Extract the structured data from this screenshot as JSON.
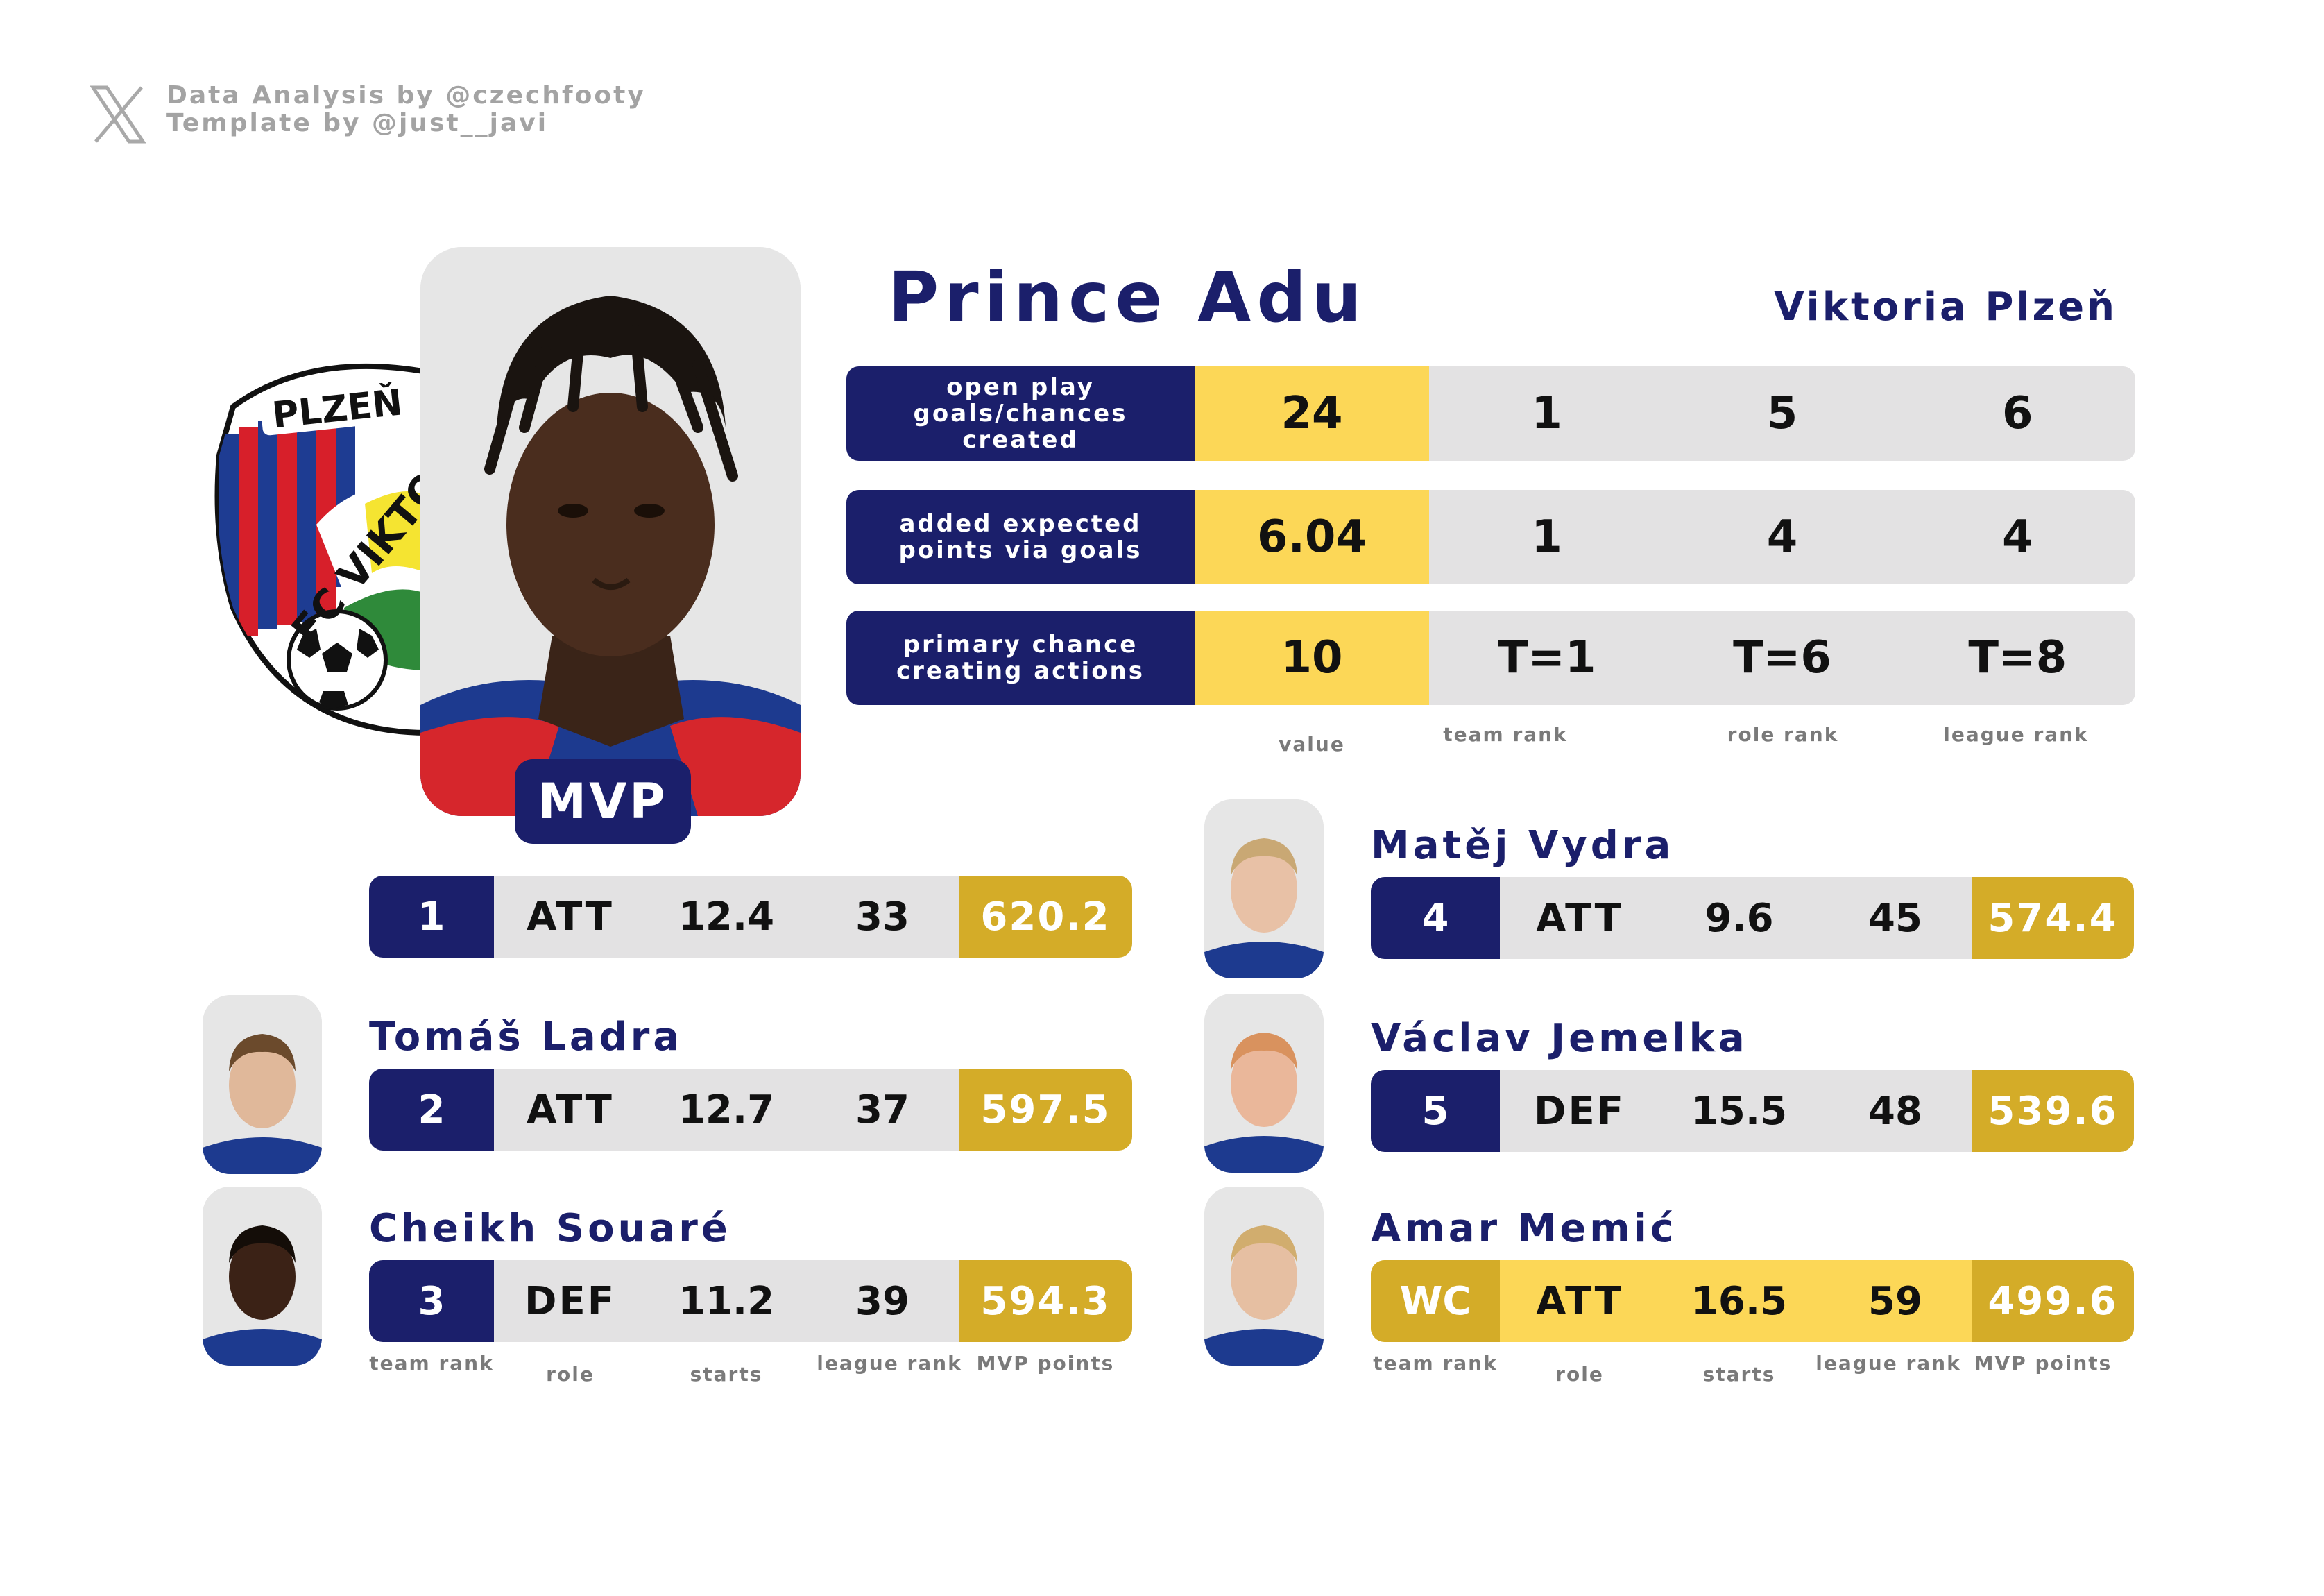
{
  "credits": {
    "line1": "Data Analysis by @czechfooty",
    "line2": "Template by @just__javi",
    "icon": "x-logo-icon"
  },
  "featured": {
    "name": "Prince Adu",
    "team": "Viktoria Plzeň",
    "badge": "MVP",
    "crest_text_top": "PLZEŇ",
    "crest_text_arc": "FC VIKTORIA",
    "stats": [
      {
        "label": "open play goals/chances created",
        "value": "24",
        "team_rank": "1",
        "role_rank": "5",
        "league_rank": "6"
      },
      {
        "label": "added expected points via goals",
        "value": "6.04",
        "team_rank": "1",
        "role_rank": "4",
        "league_rank": "4"
      },
      {
        "label": "primary chance creating actions",
        "value": "10",
        "team_rank": "T=1",
        "role_rank": "T=6",
        "league_rank": "T=8"
      }
    ],
    "columns": {
      "value": "value",
      "team_rank": "team rank",
      "role_rank": "role rank",
      "league_rank": "league rank"
    }
  },
  "players_left": [
    {
      "name": "",
      "rank": "1",
      "role": "ATT",
      "starts": "12.4",
      "league_rank": "33",
      "points": "620.2"
    },
    {
      "name": "Tomáš Ladra",
      "rank": "2",
      "role": "ATT",
      "starts": "12.7",
      "league_rank": "37",
      "points": "597.5"
    },
    {
      "name": "Cheikh Souaré",
      "rank": "3",
      "role": "DEF",
      "starts": "11.2",
      "league_rank": "39",
      "points": "594.3"
    }
  ],
  "players_right": [
    {
      "name": "Matěj Vydra",
      "rank": "4",
      "role": "ATT",
      "starts": "9.6",
      "league_rank": "45",
      "points": "574.4"
    },
    {
      "name": "Václav Jemelka",
      "rank": "5",
      "role": "DEF",
      "starts": "15.5",
      "league_rank": "48",
      "points": "539.6"
    },
    {
      "name": "Amar Memić",
      "rank": "WC",
      "role": "ATT",
      "starts": "16.5",
      "league_rank": "59",
      "points": "499.6"
    }
  ],
  "table_columns": {
    "team_rank": "team rank",
    "role": "role",
    "starts": "starts",
    "league_rank": "league rank",
    "points": "MVP points"
  },
  "colors": {
    "navy": "#1b1f6b",
    "yellow": "#fcd757",
    "gold": "#d4ac28",
    "grey": "#e3e2e3"
  }
}
